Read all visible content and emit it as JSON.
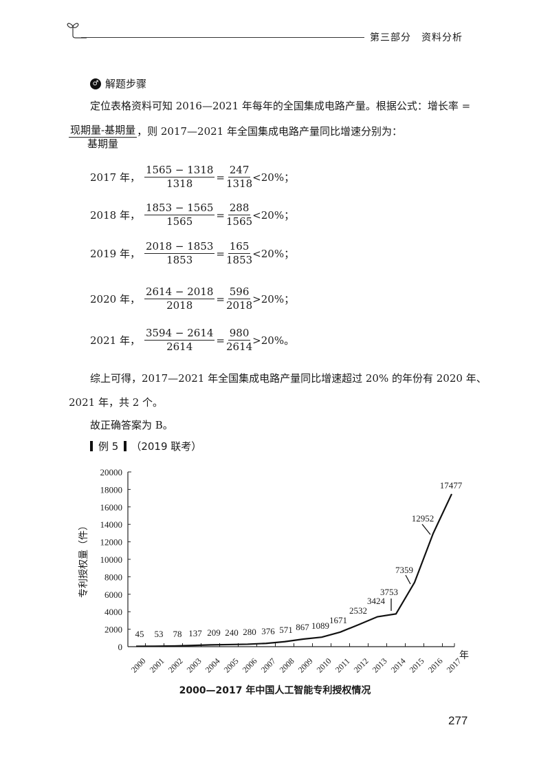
{
  "header": {
    "section_title": "第三部分　资料分析"
  },
  "solution": {
    "title": "解题步骤",
    "intro_line1": "定位表格资料可知 2016—2021 年每年的全国集成电路产量。根据公式：增长率 =",
    "formula_num": "现期量-基期量",
    "formula_den": "基期量",
    "intro_line2": "，则 2017—2021 年全国集成电路产量同比增速分别为：",
    "rows": [
      {
        "year": "2017 年，",
        "num": "1565 − 1318",
        "den": "1318",
        "num2": "247",
        "den2": "1318",
        "cmp": "<20%；"
      },
      {
        "year": "2018 年，",
        "num": "1853 − 1565",
        "den": "1565",
        "num2": "288",
        "den2": "1565",
        "cmp": "<20%；"
      },
      {
        "year": "2019 年，",
        "num": "2018 − 1853",
        "den": "1853",
        "num2": "165",
        "den2": "1853",
        "cmp": "<20%；"
      },
      {
        "year": "2020 年，",
        "num": "2614 − 2018",
        "den": "2018",
        "num2": "596",
        "den2": "2018",
        "cmp": ">20%；"
      },
      {
        "year": "2021 年，",
        "num": "3594 − 2614",
        "den": "2614",
        "num2": "980",
        "den2": "2614",
        "cmp": ">20%。"
      }
    ],
    "summary_line1": "综上可得，2017—2021 年全国集成电路产量同比增速超过 20% 的年份有 2020 年、",
    "summary_line2": "2021 年，共 2 个。",
    "answer": "故正确答案为 B。"
  },
  "example": {
    "label": "例 5",
    "source": "（2019 联考）"
  },
  "chart_data": {
    "type": "line",
    "title": "2000—2017 年中国人工智能专利授权情况",
    "xlabel": "年",
    "ylabel": "专利授权量（件）",
    "ylim": [
      0,
      20000
    ],
    "yticks": [
      0,
      2000,
      4000,
      6000,
      8000,
      10000,
      12000,
      14000,
      16000,
      18000,
      20000
    ],
    "grid": false,
    "categories": [
      "2000",
      "2001",
      "2002",
      "2003",
      "2004",
      "2005",
      "2006",
      "2007",
      "2008",
      "2009",
      "2010",
      "2011",
      "2012",
      "2013",
      "2014",
      "2015",
      "2016",
      "2017"
    ],
    "values": [
      45,
      53,
      78,
      137,
      209,
      240,
      280,
      376,
      571,
      867,
      1089,
      1671,
      2532,
      3424,
      3753,
      7359,
      12952,
      17477
    ]
  },
  "footer": {
    "page_number": "277"
  }
}
